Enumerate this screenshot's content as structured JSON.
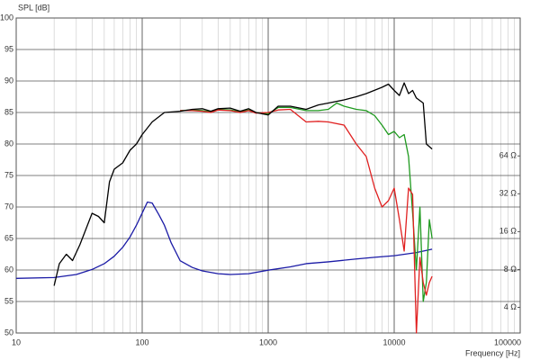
{
  "chart_data": {
    "type": "line",
    "ylabel": "SPL [dB]",
    "xlabel": "Frequency [Hz]",
    "xlog": true,
    "xlim": [
      10,
      100000
    ],
    "xticks": [
      10,
      100,
      1000,
      10000,
      100000
    ],
    "x_minor_ticks": [
      20,
      30,
      40,
      50,
      60,
      70,
      80,
      90,
      200,
      300,
      400,
      500,
      600,
      700,
      800,
      900,
      2000,
      3000,
      4000,
      5000,
      6000,
      7000,
      8000,
      9000,
      20000,
      30000,
      40000,
      50000,
      60000,
      70000,
      80000,
      90000
    ],
    "ylim": [
      50,
      100
    ],
    "yticks": [
      50,
      55,
      60,
      65,
      70,
      75,
      80,
      85,
      90,
      95,
      100
    ],
    "y2log": true,
    "y2lim": [
      2.5,
      800
    ],
    "y2ticks": [
      {
        "value": 4,
        "label": "4 Ω"
      },
      {
        "value": 8,
        "label": "8 Ω"
      },
      {
        "value": 16,
        "label": "16 Ω"
      },
      {
        "value": 32,
        "label": "32 Ω"
      },
      {
        "value": 64,
        "label": "64 Ω"
      }
    ],
    "grid": true,
    "series": [
      {
        "color": "#1b1ba6",
        "axis": "y2",
        "x": [
          10,
          20,
          30,
          40,
          50,
          60,
          70,
          80,
          90,
          100,
          110,
          120,
          135,
          150,
          170,
          200,
          250,
          300,
          400,
          500,
          700,
          1000,
          1500,
          2000,
          3000,
          5000,
          7000,
          10000,
          15000,
          20000
        ],
        "values": [
          6.8,
          6.9,
          7.3,
          8,
          8.9,
          10.2,
          12,
          14.5,
          18,
          22.5,
          27.5,
          27,
          22,
          18,
          13,
          9.4,
          8.3,
          7.8,
          7.4,
          7.3,
          7.4,
          7.9,
          8.4,
          8.9,
          9.2,
          9.7,
          10,
          10.3,
          10.9,
          11.6
        ]
      },
      {
        "color": "#1f9a1f",
        "x": [
          200,
          250,
          300,
          350,
          400,
          500,
          600,
          700,
          800,
          1000,
          1200,
          1500,
          2000,
          2500,
          3000,
          3500,
          4000,
          5000,
          6000,
          7000,
          8000,
          9000,
          10000,
          11000,
          12000,
          13000,
          14000,
          15000,
          16000,
          17000,
          18000,
          19000,
          20000
        ],
        "values": [
          85.3,
          85.4,
          85.3,
          85.1,
          85.5,
          85.4,
          85.1,
          85.4,
          85,
          84.8,
          85.8,
          85.8,
          85.3,
          85.3,
          85.5,
          86.5,
          86,
          85.5,
          85.3,
          84.5,
          83,
          81.5,
          82,
          81,
          81.5,
          78,
          69,
          60,
          70,
          55,
          58,
          68,
          65
        ]
      },
      {
        "color": "#e02020",
        "x": [
          200,
          250,
          300,
          350,
          400,
          500,
          600,
          700,
          800,
          1000,
          1200,
          1500,
          2000,
          2500,
          3000,
          4000,
          5000,
          6000,
          7000,
          8000,
          9000,
          10000,
          11000,
          12000,
          13000,
          14000,
          15000,
          16000,
          17000,
          18000,
          19000,
          20000
        ],
        "values": [
          85.3,
          85.3,
          85.2,
          85,
          85.4,
          85.3,
          85,
          85.3,
          84.9,
          85,
          85.4,
          85.5,
          83.5,
          83.6,
          83.5,
          83,
          80,
          78,
          73,
          70,
          71,
          73,
          68,
          63,
          73,
          72,
          50,
          62,
          58,
          56,
          58,
          59
        ]
      },
      {
        "color": "#000000",
        "x": [
          20,
          22,
          25,
          28,
          32,
          35,
          40,
          45,
          50,
          55,
          60,
          70,
          80,
          90,
          100,
          120,
          150,
          200,
          250,
          300,
          350,
          400,
          500,
          600,
          700,
          800,
          1000,
          1200,
          1500,
          2000,
          2500,
          3000,
          4000,
          5000,
          6000,
          8000,
          9000,
          10000,
          11000,
          12000,
          13000,
          14000,
          15000,
          17000,
          18000,
          20000
        ],
        "values": [
          57.5,
          61,
          62.5,
          61.5,
          64,
          66,
          69,
          68.5,
          67.5,
          74,
          76,
          77,
          79,
          80,
          81.5,
          83.5,
          85,
          85.2,
          85.5,
          85.6,
          85.2,
          85.6,
          85.7,
          85.2,
          85.6,
          85,
          84.6,
          86,
          86,
          85.5,
          86.2,
          86.5,
          87,
          87.5,
          88,
          89,
          89.5,
          88.5,
          87.7,
          89.7,
          88,
          88.5,
          87.3,
          86.5,
          80,
          79.2
        ]
      }
    ]
  }
}
